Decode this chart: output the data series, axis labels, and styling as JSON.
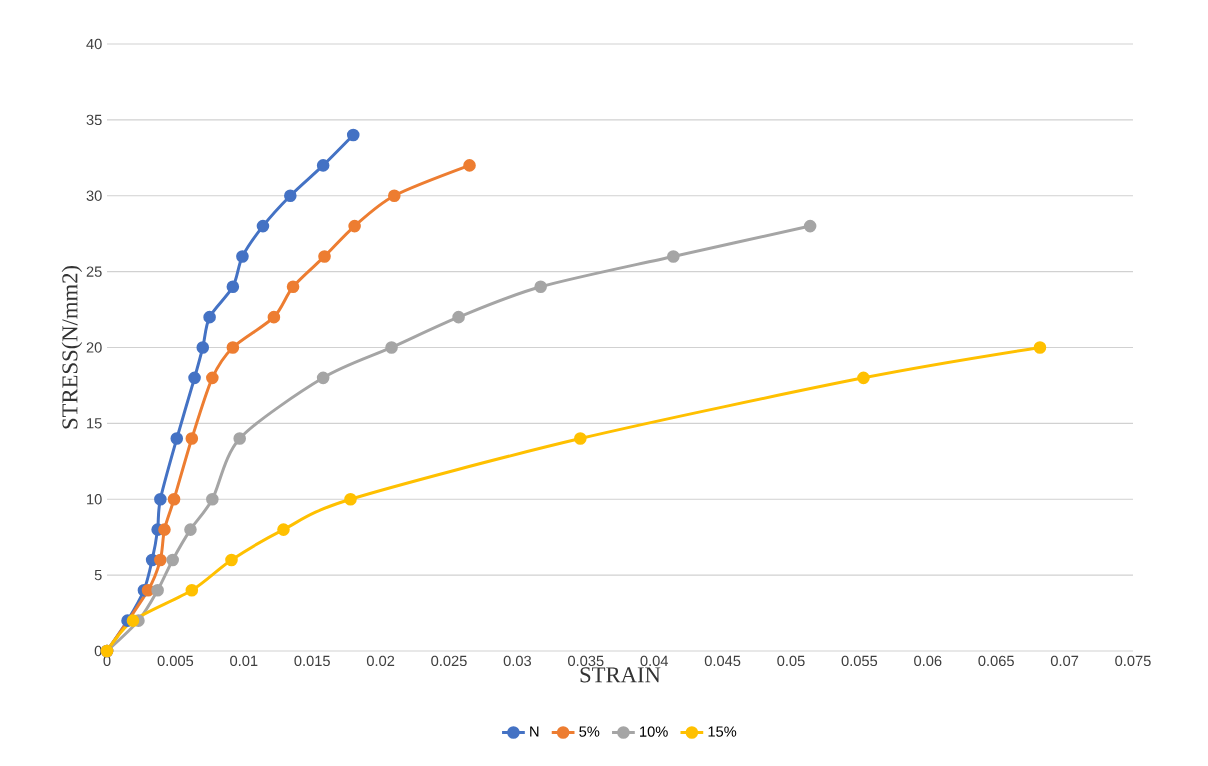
{
  "chart_data": {
    "type": "line",
    "xlabel": "STRAIN",
    "ylabel": "STRESS(N/mm2)",
    "xlim": [
      0,
      0.075
    ],
    "ylim": [
      0,
      40
    ],
    "xticks": [
      0,
      0.005,
      0.01,
      0.015,
      0.02,
      0.025,
      0.03,
      0.035,
      0.04,
      0.045,
      0.05,
      0.055,
      0.06,
      0.065,
      0.07,
      0.075
    ],
    "yticks": [
      0,
      5,
      10,
      15,
      20,
      25,
      30,
      35,
      40
    ],
    "grid": "y",
    "legend": "bottom",
    "marker": "circle",
    "line_style": "solid",
    "series": [
      {
        "name": "N",
        "color": "#4472c4",
        "x": [
          0,
          0.0015,
          0.0027,
          0.0033,
          0.0037,
          0.0039,
          0.0051,
          0.0064,
          0.007,
          0.0075,
          0.0092,
          0.0099,
          0.0114,
          0.0134,
          0.0158,
          0.018
        ],
        "values": [
          0,
          2,
          4,
          6,
          8,
          10,
          14,
          18,
          20,
          22,
          24,
          26,
          28,
          30,
          32,
          34
        ]
      },
      {
        "name": "5%",
        "color": "#ed7d31",
        "x": [
          0,
          0.0018,
          0.003,
          0.0039,
          0.0042,
          0.0049,
          0.0062,
          0.0077,
          0.0092,
          0.0122,
          0.0136,
          0.0159,
          0.0181,
          0.021,
          0.0265
        ],
        "values": [
          0,
          null,
          4,
          6,
          8,
          10,
          14,
          18,
          20,
          22,
          24,
          26,
          28,
          30,
          32
        ]
      },
      {
        "name": "10%",
        "color": "#a5a5a5",
        "x": [
          0,
          0.0023,
          0.0037,
          0.0048,
          0.0061,
          0.0077,
          0.0097,
          0.0158,
          0.0208,
          0.0257,
          0.0317,
          0.0414,
          0.0514
        ],
        "values": [
          0,
          2,
          4,
          6,
          8,
          10,
          14,
          18,
          20,
          22,
          24,
          26,
          28
        ]
      },
      {
        "name": "15%",
        "color": "#ffc000",
        "x": [
          0,
          0.0019,
          0.0062,
          0.0091,
          0.0129,
          0.0178,
          0.0346,
          0.0553,
          0.0682
        ],
        "values": [
          0,
          2,
          4,
          6,
          8,
          10,
          14,
          18,
          20
        ]
      }
    ]
  }
}
